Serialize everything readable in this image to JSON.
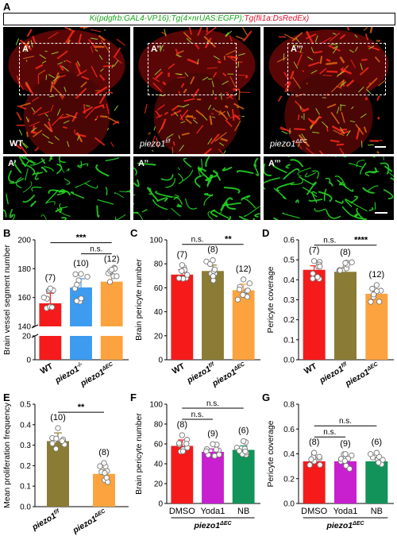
{
  "panel_labels": [
    "A",
    "B",
    "C",
    "D",
    "E",
    "F",
    "G"
  ],
  "genotype": {
    "part1": "Ki(pdgfrb:GAL4-VP16);Tg(4×nrUAS:EGFP);",
    "part2": "Tg(fli1a:DsRedEx)"
  },
  "images": {
    "top_labels": [
      "WT",
      "piezo1",
      "piezo1"
    ],
    "top_sup": [
      "",
      "f/f",
      "ΔEC"
    ],
    "inset_labels": [
      "A’",
      "A’’",
      "A’’’"
    ]
  },
  "colors": {
    "red": "#f51b1b",
    "blue": "#3d9bf0",
    "orange": "#fca33f",
    "olive": "#8a7c35",
    "magenta": "#c81fcf",
    "green": "#12935a"
  },
  "chart_data": [
    {
      "id": "B",
      "type": "bar",
      "ylabel": "Brain vessel segment number",
      "categories": [
        "WT",
        "piezo1",
        "piezo1"
      ],
      "category_sup": [
        "",
        "-/-",
        "ΔEC"
      ],
      "values": [
        156,
        167,
        171
      ],
      "errors": [
        7,
        6,
        5
      ],
      "n_labels": [
        "(7)",
        "(10)",
        "(12)"
      ],
      "yticks": [
        "0",
        "20",
        "140",
        "160",
        "180",
        "200"
      ],
      "axis_break": true,
      "significance": [
        {
          "from": 0,
          "to": 2,
          "label": "***"
        },
        {
          "from": 1,
          "to": 2,
          "label": "n.s."
        }
      ]
    },
    {
      "id": "C",
      "type": "bar",
      "ylabel": "Brain pericyte number",
      "categories": [
        "WT",
        "piezo1",
        "piezo1"
      ],
      "category_sup": [
        "",
        "f/f",
        "ΔEC"
      ],
      "values": [
        71,
        74,
        58
      ],
      "errors": [
        4,
        5,
        5
      ],
      "n_labels": [
        "(7)",
        "(8)",
        "(12)"
      ],
      "yticks": [
        "0",
        "20",
        "40",
        "60",
        "80",
        "100"
      ],
      "ylim": [
        0,
        100
      ],
      "significance": [
        {
          "from": 0,
          "to": 1,
          "label": "n.s."
        },
        {
          "from": 1,
          "to": 2,
          "label": "**"
        }
      ]
    },
    {
      "id": "D",
      "type": "bar",
      "ylabel": "Pericyte coverage",
      "categories": [
        "WT",
        "piezo1",
        "piezo1"
      ],
      "category_sup": [
        "",
        "f/f",
        "ΔEC"
      ],
      "values": [
        0.45,
        0.44,
        0.33
      ],
      "errors": [
        0.02,
        0.02,
        0.02
      ],
      "n_labels": [
        "(7)",
        "(8)",
        "(12)"
      ],
      "yticks": [
        "0.0",
        "0.1",
        "0.2",
        "0.3",
        "0.4",
        "0.5",
        "0.6"
      ],
      "ylim": [
        0,
        0.6
      ],
      "significance": [
        {
          "from": 0,
          "to": 1,
          "label": "n.s."
        },
        {
          "from": 1,
          "to": 2,
          "label": "****"
        }
      ]
    },
    {
      "id": "E",
      "type": "bar",
      "ylabel": "Mean proliferation frequency",
      "categories": [
        "piezo1",
        "piezo1"
      ],
      "category_sup": [
        "f/f",
        "ΔEC"
      ],
      "values": [
        0.32,
        0.16
      ],
      "errors": [
        0.04,
        0.03
      ],
      "n_labels": [
        "(10)",
        "(8)"
      ],
      "yticks": [
        "0.0",
        "0.1",
        "0.2",
        "0.3",
        "0.4",
        "0.5"
      ],
      "ylim": [
        0,
        0.5
      ],
      "significance": [
        {
          "from": 0,
          "to": 1,
          "label": "**"
        }
      ]
    },
    {
      "id": "F",
      "type": "bar",
      "ylabel": "Brain pericyte number",
      "categories": [
        "DMSO",
        "Yoda1",
        "NB"
      ],
      "group_label": "piezo1",
      "group_sup": "ΔEC",
      "values": [
        58,
        52,
        54
      ],
      "errors": [
        6,
        3,
        4
      ],
      "n_labels": [
        "(8)",
        "(9)",
        "(6)"
      ],
      "yticks": [
        "0",
        "20",
        "40",
        "60",
        "80",
        "100"
      ],
      "ylim": [
        0,
        100
      ],
      "significance": [
        {
          "from": 0,
          "to": 1,
          "label": "n.s."
        },
        {
          "from": 0,
          "to": 2,
          "label": "n.s."
        }
      ]
    },
    {
      "id": "G",
      "type": "bar",
      "ylabel": "Pericyte coverage",
      "categories": [
        "DMSO",
        "Yoda1",
        "NB"
      ],
      "group_label": "piezo1",
      "group_sup": "ΔEC",
      "values": [
        0.34,
        0.34,
        0.34
      ],
      "errors": [
        0.03,
        0.02,
        0.03
      ],
      "n_labels": [
        "(8)",
        "(9)",
        "(6)"
      ],
      "yticks": [
        "0.0",
        "0.2",
        "0.4",
        "0.6",
        "0.8"
      ],
      "ylim": [
        0,
        0.8
      ],
      "significance": [
        {
          "from": 0,
          "to": 1,
          "label": "n.s."
        },
        {
          "from": 0,
          "to": 2,
          "label": "n.s."
        }
      ]
    }
  ]
}
